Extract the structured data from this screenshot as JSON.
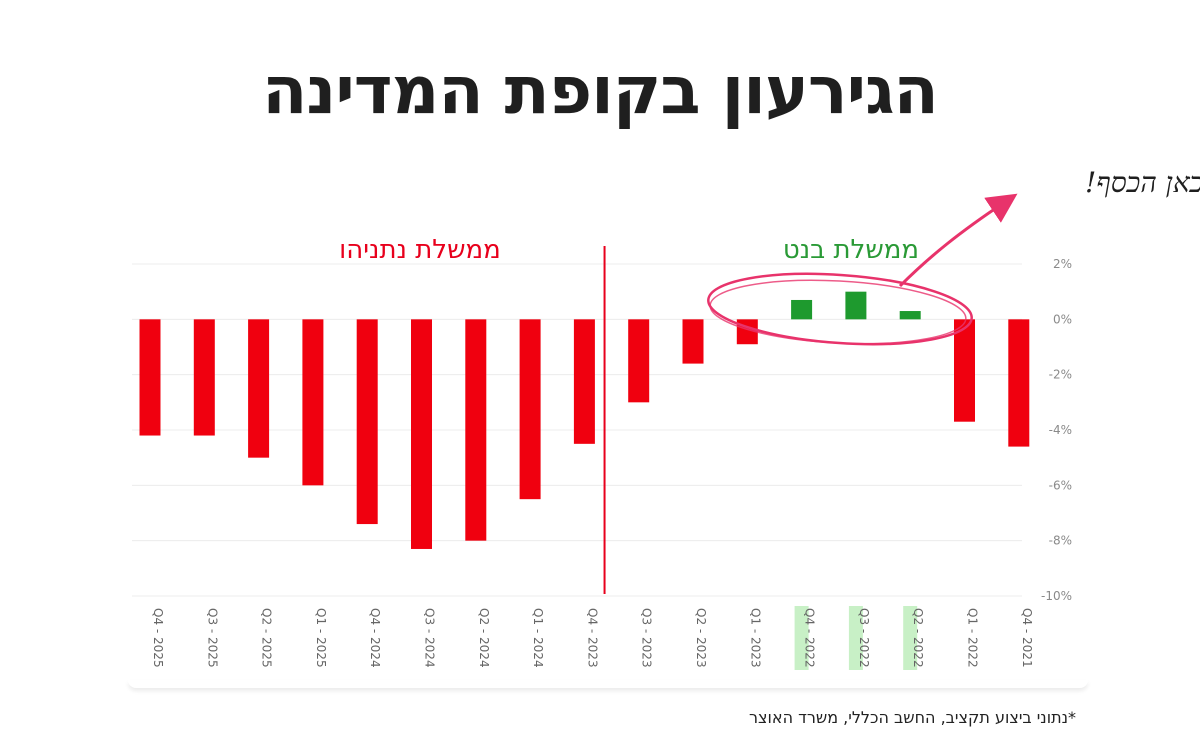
{
  "title": "הגירעון בקופת המדינה",
  "footnote": "*נתוני ביצוע תקציב, החשב הכללי, משרד האוצר",
  "annotation": "כאן הכסף!",
  "colors": {
    "deficit": "#f0000f",
    "surplus": "#1e9a2e",
    "highlight": "#c8f0c6",
    "annotation": "#e8336b"
  },
  "chart_data": {
    "type": "bar",
    "categories": [
      "Q4 - 2025",
      "Q3 - 2025",
      "Q2 - 2025",
      "Q1 - 2025",
      "Q4 - 2024",
      "Q3 - 2024",
      "Q2 - 2024",
      "Q1 - 2024",
      "Q4 - 2023",
      "Q3 - 2023",
      "Q2 - 2023",
      "Q1 - 2023",
      "Q4 - 2022",
      "Q3 - 2022",
      "Q2 - 2022",
      "Q1 - 2022",
      "Q4 - 2021"
    ],
    "values": [
      -4.2,
      -4.2,
      -5.0,
      -6.0,
      -7.4,
      -8.3,
      -8.0,
      -6.5,
      -4.5,
      -3.0,
      -1.6,
      -0.9,
      0.7,
      1.0,
      0.3,
      -3.7,
      -4.6
    ],
    "highlighted": [
      "Q4 - 2022",
      "Q3 - 2022",
      "Q2 - 2022"
    ],
    "yticks": [
      "2%",
      "0%",
      "-2%",
      "-4%",
      "-6%",
      "-8%",
      "-10%"
    ],
    "ylim": [
      -10,
      2
    ],
    "divider_after": "Q4 - 2023",
    "governments": [
      {
        "label": "ממשלת נתניהו",
        "color": "#e8001c"
      },
      {
        "label": "ממשלת בנט",
        "color": "#2a9a36"
      }
    ]
  }
}
